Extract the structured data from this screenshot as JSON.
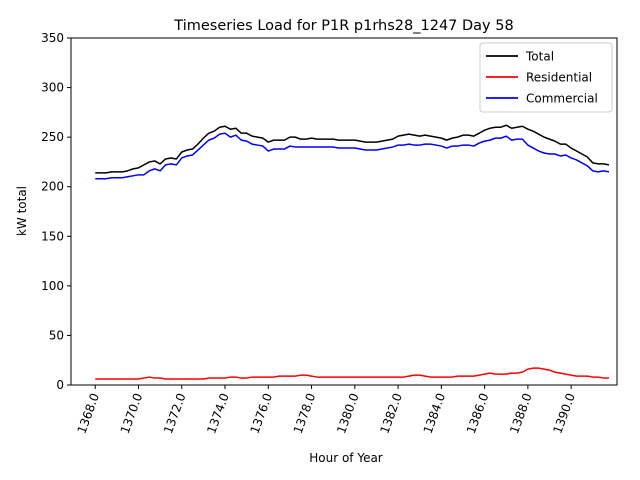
{
  "chart_data": {
    "type": "line",
    "title": "Timeseries Load for P1R p1rhs28_1247  Day 58",
    "xlabel": "Hour of Year",
    "ylabel": "kW total",
    "xlim": [
      1366.88,
      1392.12
    ],
    "ylim": [
      0,
      350
    ],
    "xticks": [
      1368,
      1370,
      1372,
      1374,
      1376,
      1378,
      1380,
      1382,
      1384,
      1386,
      1388,
      1390
    ],
    "xtick_labels": [
      "1368.0",
      "1370.0",
      "1372.0",
      "1374.0",
      "1376.0",
      "1378.0",
      "1380.0",
      "1382.0",
      "1384.0",
      "1386.0",
      "1388.0",
      "1390.0"
    ],
    "yticks": [
      0,
      50,
      100,
      150,
      200,
      250,
      300,
      350
    ],
    "ytick_labels": [
      "0",
      "50",
      "100",
      "150",
      "200",
      "250",
      "300",
      "350"
    ],
    "legend_position": "top-right",
    "x": [
      1368.0,
      1368.25,
      1368.5,
      1368.75,
      1369.0,
      1369.25,
      1369.5,
      1369.75,
      1370.0,
      1370.25,
      1370.5,
      1370.75,
      1371.0,
      1371.25,
      1371.5,
      1371.75,
      1372.0,
      1372.25,
      1372.5,
      1372.75,
      1373.0,
      1373.25,
      1373.5,
      1373.75,
      1374.0,
      1374.25,
      1374.5,
      1374.75,
      1375.0,
      1375.25,
      1375.5,
      1375.75,
      1376.0,
      1376.25,
      1376.5,
      1376.75,
      1377.0,
      1377.25,
      1377.5,
      1377.75,
      1378.0,
      1378.25,
      1378.5,
      1378.75,
      1379.0,
      1379.25,
      1379.5,
      1379.75,
      1380.0,
      1380.25,
      1380.5,
      1380.75,
      1381.0,
      1381.25,
      1381.5,
      1381.75,
      1382.0,
      1382.25,
      1382.5,
      1382.75,
      1383.0,
      1383.25,
      1383.5,
      1383.75,
      1384.0,
      1384.25,
      1384.5,
      1384.75,
      1385.0,
      1385.25,
      1385.5,
      1385.75,
      1386.0,
      1386.25,
      1386.5,
      1386.75,
      1387.0,
      1387.25,
      1387.5,
      1387.75,
      1388.0,
      1388.25,
      1388.5,
      1388.75,
      1389.0,
      1389.25,
      1389.5,
      1389.75,
      1390.0,
      1390.25,
      1390.5,
      1390.75,
      1391.0,
      1391.25,
      1391.5,
      1391.75
    ],
    "series": [
      {
        "name": "Total",
        "color": "#000000",
        "values": [
          214,
          214,
          214,
          215,
          215,
          215,
          216,
          218,
          219,
          222,
          225,
          226,
          223,
          228,
          229,
          228,
          235,
          237,
          238,
          243,
          249,
          254,
          256,
          260,
          261,
          258,
          259,
          254,
          254,
          251,
          250,
          249,
          245,
          247,
          247,
          247,
          250,
          250,
          248,
          248,
          249,
          248,
          248,
          248,
          248,
          247,
          247,
          247,
          247,
          246,
          245,
          245,
          245,
          246,
          247,
          248,
          251,
          252,
          253,
          252,
          251,
          252,
          251,
          250,
          249,
          247,
          249,
          250,
          252,
          252,
          251,
          254,
          257,
          259,
          260,
          260,
          262,
          259,
          260,
          261,
          258,
          256,
          253,
          250,
          248,
          246,
          243,
          243,
          239,
          236,
          233,
          230,
          224,
          223,
          223,
          222
        ]
      },
      {
        "name": "Residential",
        "color": "#ff0000",
        "values": [
          6,
          6,
          6,
          6,
          6,
          6,
          6,
          6,
          6,
          7,
          8,
          7,
          7,
          6,
          6,
          6,
          6,
          6,
          6,
          6,
          6,
          7,
          7,
          7,
          7,
          8,
          8,
          7,
          7,
          8,
          8,
          8,
          8,
          8,
          9,
          9,
          9,
          9,
          10,
          10,
          9,
          8,
          8,
          8,
          8,
          8,
          8,
          8,
          8,
          8,
          8,
          8,
          8,
          8,
          8,
          8,
          8,
          8,
          9,
          10,
          10,
          9,
          8,
          8,
          8,
          8,
          8,
          9,
          9,
          9,
          9,
          10,
          11,
          12,
          11,
          11,
          11,
          12,
          12,
          13,
          16,
          17,
          17,
          16,
          15,
          13,
          12,
          11,
          10,
          9,
          9,
          9,
          8,
          8,
          7,
          7
        ]
      },
      {
        "name": "Commercial",
        "color": "#0000ff",
        "values": [
          208,
          208,
          208,
          209,
          209,
          209,
          210,
          211,
          212,
          212,
          216,
          218,
          216,
          222,
          223,
          222,
          229,
          231,
          232,
          237,
          242,
          247,
          249,
          253,
          254,
          250,
          252,
          247,
          246,
          243,
          242,
          241,
          236,
          238,
          238,
          238,
          241,
          240,
          240,
          240,
          240,
          240,
          240,
          240,
          240,
          239,
          239,
          239,
          239,
          238,
          237,
          237,
          237,
          238,
          239,
          240,
          242,
          242,
          243,
          242,
          242,
          243,
          243,
          242,
          241,
          239,
          241,
          241,
          242,
          242,
          241,
          244,
          246,
          247,
          249,
          249,
          251,
          247,
          248,
          248,
          242,
          239,
          236,
          234,
          233,
          233,
          231,
          232,
          229,
          227,
          224,
          221,
          216,
          215,
          216,
          215
        ]
      }
    ]
  }
}
